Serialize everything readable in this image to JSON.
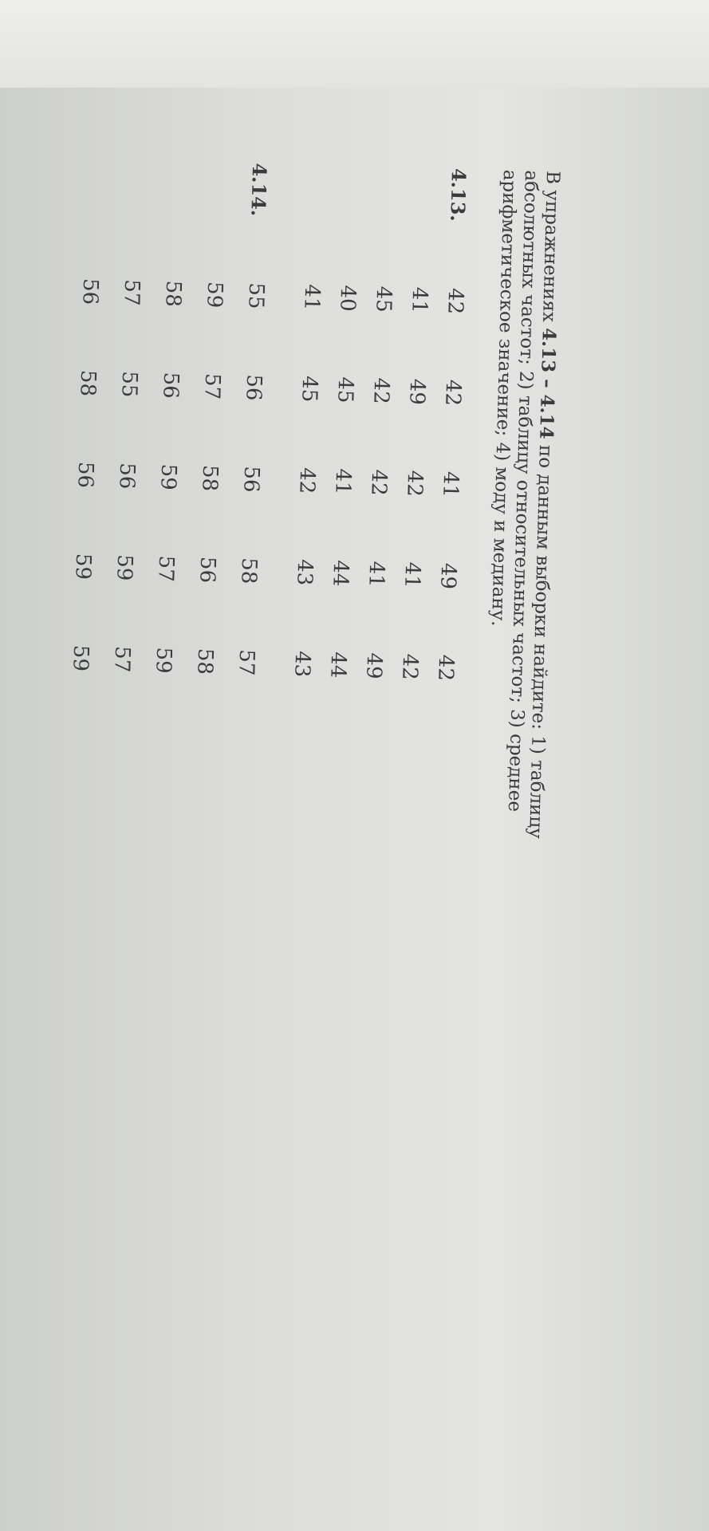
{
  "instruction": {
    "prefix": "В упражнениях ",
    "range": "4.13 – 4.14",
    "text": " по данным выборки найдите: 1) таблицу абсолютных частот; 2) таблицу относительных частот; 3) среднее арифметическое значение; 4) моду и медиану."
  },
  "exercises": [
    {
      "label": "4.13.",
      "rows": [
        [
          "42",
          "42",
          "41",
          "49",
          "42"
        ],
        [
          "41",
          "49",
          "42",
          "41",
          "42"
        ],
        [
          "45",
          "42",
          "42",
          "41",
          "49"
        ],
        [
          "40",
          "45",
          "41",
          "44",
          "44"
        ],
        [
          "41",
          "45",
          "42",
          "43",
          "43"
        ]
      ]
    },
    {
      "label": "4.14.",
      "rows": [
        [
          "55",
          "56",
          "56",
          "58",
          "57"
        ],
        [
          "59",
          "57",
          "58",
          "56",
          "58"
        ],
        [
          "58",
          "56",
          "59",
          "57",
          "59"
        ],
        [
          "57",
          "55",
          "56",
          "59",
          "57"
        ],
        [
          "56",
          "58",
          "56",
          "59",
          "59"
        ]
      ]
    }
  ]
}
